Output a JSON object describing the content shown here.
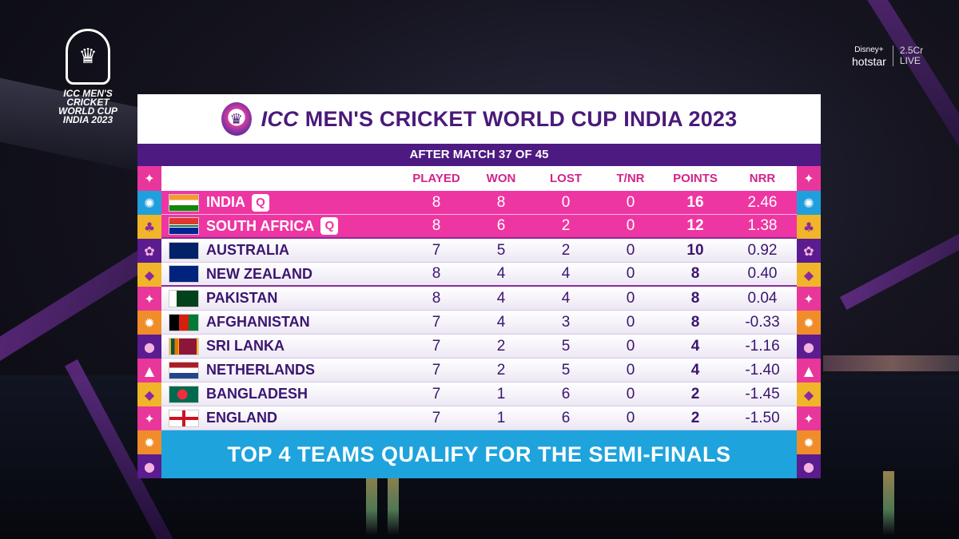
{
  "logo": {
    "line1": "ICC MEN'S",
    "line2": "CRICKET",
    "line3": "WORLD CUP",
    "line4": "INDIA 2023",
    "icon": "trophy-icon"
  },
  "broadcaster": {
    "brand_top": "Disney+",
    "brand_bottom": "hotstar",
    "views": "2.5Cr",
    "status": "LIVE"
  },
  "header": {
    "part1": "ICC",
    "part2": "MEN'S CRICKET WORLD CUP",
    "part3": "INDIA 2023"
  },
  "subheader": "AFTER MATCH 37 OF 45",
  "columns": {
    "played": "PLAYED",
    "won": "WON",
    "lost": "LOST",
    "tnr": "T/NR",
    "points": "POINTS",
    "nrr": "NRR"
  },
  "qualified_badge": "Q",
  "rows": [
    {
      "team": "INDIA",
      "flag": "india-flag-icon",
      "played": "8",
      "won": "8",
      "lost": "0",
      "tnr": "0",
      "points": "16",
      "nrr": "2.46"
    },
    {
      "team": "SOUTH AFRICA",
      "flag": "south-africa-flag-icon",
      "played": "8",
      "won": "6",
      "lost": "2",
      "tnr": "0",
      "points": "12",
      "nrr": "1.38"
    },
    {
      "team": "AUSTRALIA",
      "flag": "australia-flag-icon",
      "played": "7",
      "won": "5",
      "lost": "2",
      "tnr": "0",
      "points": "10",
      "nrr": "0.92"
    },
    {
      "team": "NEW ZEALAND",
      "flag": "new-zealand-flag-icon",
      "played": "8",
      "won": "4",
      "lost": "4",
      "tnr": "0",
      "points": "8",
      "nrr": "0.40"
    },
    {
      "team": "PAKISTAN",
      "flag": "pakistan-flag-icon",
      "played": "8",
      "won": "4",
      "lost": "4",
      "tnr": "0",
      "points": "8",
      "nrr": "0.04"
    },
    {
      "team": "AFGHANISTAN",
      "flag": "afghanistan-flag-icon",
      "played": "7",
      "won": "4",
      "lost": "3",
      "tnr": "0",
      "points": "8",
      "nrr": "-0.33"
    },
    {
      "team": "SRI LANKA",
      "flag": "sri-lanka-flag-icon",
      "played": "7",
      "won": "2",
      "lost": "5",
      "tnr": "0",
      "points": "4",
      "nrr": "-1.16"
    },
    {
      "team": "NETHERLANDS",
      "flag": "netherlands-flag-icon",
      "played": "7",
      "won": "2",
      "lost": "5",
      "tnr": "0",
      "points": "4",
      "nrr": "-1.40"
    },
    {
      "team": "BANGLADESH",
      "flag": "bangladesh-flag-icon",
      "played": "7",
      "won": "1",
      "lost": "6",
      "tnr": "0",
      "points": "2",
      "nrr": "-1.45"
    },
    {
      "team": "ENGLAND",
      "flag": "england-flag-icon",
      "played": "7",
      "won": "1",
      "lost": "6",
      "tnr": "0",
      "points": "2",
      "nrr": "-1.50"
    }
  ],
  "footer": "TOP 4 TEAMS QUALIFY FOR THE SEMI-FINALS",
  "colors": {
    "qualified_row": "#ee36a2",
    "header_text": "#4a1a7a",
    "sub_header_bg": "#4d1a82",
    "column_header": "#d2248a",
    "footer_bg": "#1ea3dc"
  }
}
